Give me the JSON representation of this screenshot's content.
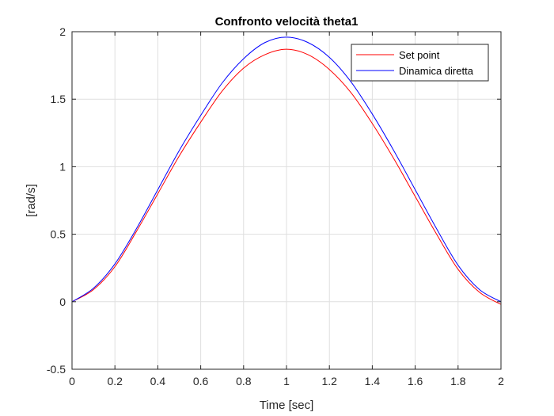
{
  "chart_data": {
    "type": "line",
    "title": "Confronto velocità theta1",
    "xlabel": "Time [sec]",
    "ylabel": "[rad/s]",
    "xlim": [
      0,
      2
    ],
    "ylim": [
      -0.5,
      2
    ],
    "xticks": [
      0,
      0.2,
      0.4,
      0.6,
      0.8,
      1,
      1.2,
      1.4,
      1.6,
      1.8,
      2
    ],
    "xtick_labels": [
      "0",
      "0.2",
      "0.4",
      "0.6",
      "0.8",
      "1",
      "1.2",
      "1.4",
      "1.6",
      "1.8",
      "2"
    ],
    "yticks": [
      -0.5,
      0,
      0.5,
      1,
      1.5,
      2
    ],
    "ytick_labels": [
      "-0.5",
      "0",
      "0.5",
      "1",
      "1.5",
      "2"
    ],
    "grid": true,
    "legend_position": "top-right",
    "x": [
      0,
      0.1,
      0.2,
      0.3,
      0.4,
      0.5,
      0.6,
      0.7,
      0.8,
      0.9,
      1.0,
      1.1,
      1.2,
      1.3,
      1.4,
      1.5,
      1.6,
      1.7,
      1.8,
      1.9,
      2.0
    ],
    "series": [
      {
        "name": "Set point",
        "color": "#ff0000",
        "values": [
          0.0,
          0.09,
          0.26,
          0.52,
          0.8,
          1.08,
          1.33,
          1.56,
          1.73,
          1.83,
          1.87,
          1.83,
          1.72,
          1.55,
          1.32,
          1.06,
          0.78,
          0.5,
          0.24,
          0.07,
          -0.02
        ]
      },
      {
        "name": "Dinamica diretta",
        "color": "#0000ff",
        "values": [
          0.0,
          0.1,
          0.28,
          0.54,
          0.83,
          1.12,
          1.38,
          1.62,
          1.8,
          1.92,
          1.96,
          1.92,
          1.81,
          1.63,
          1.39,
          1.12,
          0.83,
          0.54,
          0.27,
          0.09,
          0.0
        ]
      }
    ]
  }
}
